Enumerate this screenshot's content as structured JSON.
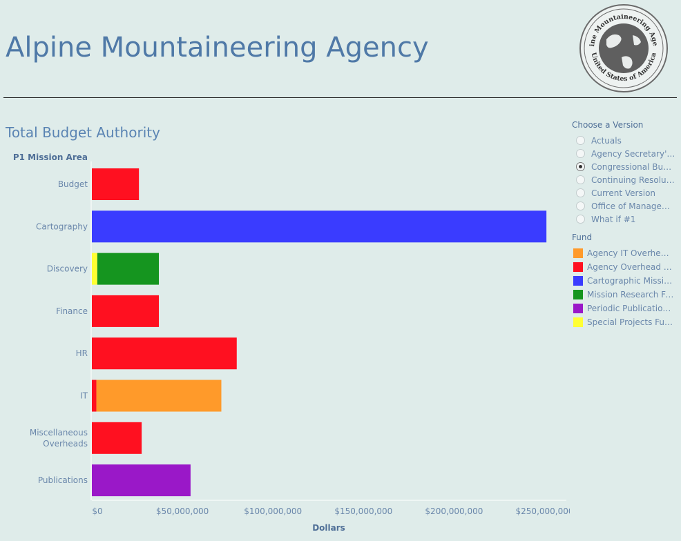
{
  "header": {
    "title": "Alpine Mountaineering Agency",
    "seal_text_top": "Alpine Mountaineering Agency",
    "seal_text_bottom": "United States of America",
    "seal_icon": "globe-seal-icon"
  },
  "filters": {
    "version_title": "Choose a Version",
    "versions": [
      {
        "label": "Actuals",
        "selected": false
      },
      {
        "label": "Agency Secretary's ...",
        "selected": false
      },
      {
        "label": "Congressional Budg...",
        "selected": true
      },
      {
        "label": "Continuing Resoluti...",
        "selected": false
      },
      {
        "label": "Current Version",
        "selected": false
      },
      {
        "label": "Office of Managem...",
        "selected": false
      },
      {
        "label": "What if #1",
        "selected": false
      }
    ],
    "fund_title": "Fund",
    "funds": [
      {
        "label": "Agency IT Overhead ...",
        "color": "#ff9a2a"
      },
      {
        "label": "Agency Overhead Fu...",
        "color": "#ff1020"
      },
      {
        "label": "Cartographic Missio...",
        "color": "#3a3cff"
      },
      {
        "label": "Mission Research Fu...",
        "color": "#15951f"
      },
      {
        "label": "Periodic Publications...",
        "color": "#9a18c8"
      },
      {
        "label": "Special Projects Fun...",
        "color": "#ffff33"
      }
    ]
  },
  "chart_data": {
    "type": "bar",
    "orientation": "horizontal",
    "stacked": true,
    "title": "Total Budget Authority",
    "row_header": "P1 Mission Area",
    "xlabel": "Dollars",
    "xlim": [
      0,
      262000000
    ],
    "xticks": [
      0,
      50000000,
      100000000,
      150000000,
      200000000,
      250000000
    ],
    "xtick_labels": [
      "$0",
      "$50,000,000",
      "$100,000,000",
      "$150,000,000",
      "$200,000,000",
      "$250,000,000"
    ],
    "categories": [
      "Budget",
      "Cartography",
      "Discovery",
      "Finance",
      "HR",
      "IT",
      "Miscellaneous Overheads",
      "Publications"
    ],
    "category_lines": [
      [
        "Budget"
      ],
      [
        "Cartography"
      ],
      [
        "Discovery"
      ],
      [
        "Finance"
      ],
      [
        "HR"
      ],
      [
        "IT"
      ],
      [
        "Miscellaneous",
        "Overheads"
      ],
      [
        "Publications"
      ]
    ],
    "series": [
      {
        "name": "Special Projects Fun...",
        "color": "#ffff33",
        "values": [
          0,
          0,
          3000000,
          0,
          0,
          0,
          0,
          0
        ]
      },
      {
        "name": "Agency Overhead Fu...",
        "color": "#ff1020",
        "values": [
          26000000,
          0,
          0,
          37000000,
          80000000,
          2500000,
          27500000,
          0
        ]
      },
      {
        "name": "Mission Research Fu...",
        "color": "#15951f",
        "values": [
          0,
          0,
          34000000,
          0,
          0,
          0,
          0,
          0
        ]
      },
      {
        "name": "Agency IT Overhead ...",
        "color": "#ff9a2a",
        "values": [
          0,
          0,
          0,
          0,
          0,
          69000000,
          0,
          0
        ]
      },
      {
        "name": "Cartographic Missio...",
        "color": "#3a3cff",
        "values": [
          0,
          251000000,
          0,
          0,
          0,
          0,
          0,
          0
        ]
      },
      {
        "name": "Periodic Publications...",
        "color": "#9a18c8",
        "values": [
          0,
          0,
          0,
          0,
          0,
          0,
          0,
          54500000
        ]
      }
    ],
    "grid": false,
    "legend_position": "right"
  }
}
